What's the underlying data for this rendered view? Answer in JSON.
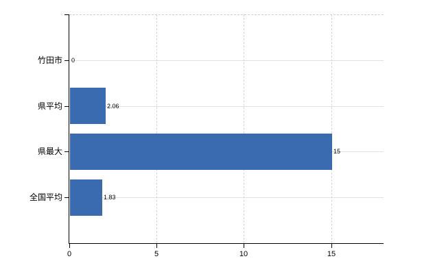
{
  "chart_data": {
    "type": "bar",
    "orientation": "horizontal",
    "title": "",
    "xlabel": "",
    "ylabel": "",
    "categories": [
      "竹田市",
      "県平均",
      "県最大",
      "全国平均"
    ],
    "values": [
      0,
      2.06,
      15,
      1.83
    ],
    "value_labels": [
      "0",
      "2.06",
      "15",
      "1.83"
    ],
    "x_ticks": [
      0,
      5,
      10,
      15
    ],
    "x_tick_labels": [
      "0",
      "5",
      "10",
      "15"
    ],
    "xlim": [
      0,
      18
    ],
    "legend": "none",
    "grid": {
      "vertical_dashed_at": [
        5,
        10,
        15
      ],
      "horizontal_row_lines": true,
      "top_border_dashed": true
    },
    "colors": {
      "bar": "#3a6bb0",
      "axis": "#000000",
      "h_gridline": "#dde4dc",
      "v_gridline": "#d4d2dc",
      "text": "#000000",
      "background": "#ffffff"
    }
  }
}
